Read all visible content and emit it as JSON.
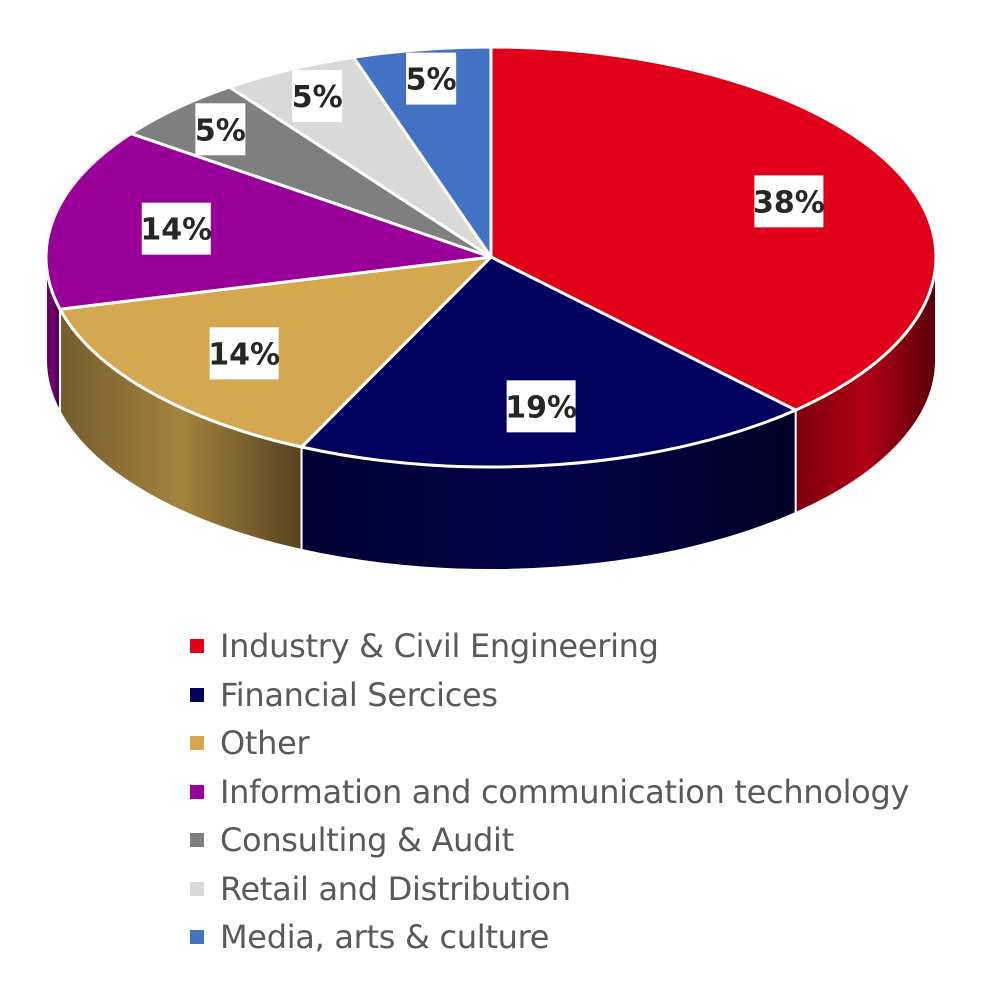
{
  "chart_data": {
    "type": "pie",
    "style": "3d",
    "title": "",
    "categories": [
      "Industry & Civil Engineering",
      "Financial Sercices",
      "Other",
      "Information and communication technology",
      "Consulting & Audit",
      "Retail and Distribution",
      "Media, arts & culture"
    ],
    "values": [
      38,
      19,
      14,
      14,
      5,
      5,
      5
    ],
    "labels": [
      "38%",
      "19%",
      "14%",
      "14%",
      "5%",
      "5%",
      "5%"
    ],
    "colors": [
      "#e1001a",
      "#02025e",
      "#d4a851",
      "#990099",
      "#7f7f7f",
      "#d9d9d9",
      "#4472c4"
    ],
    "legend_position": "bottom"
  }
}
